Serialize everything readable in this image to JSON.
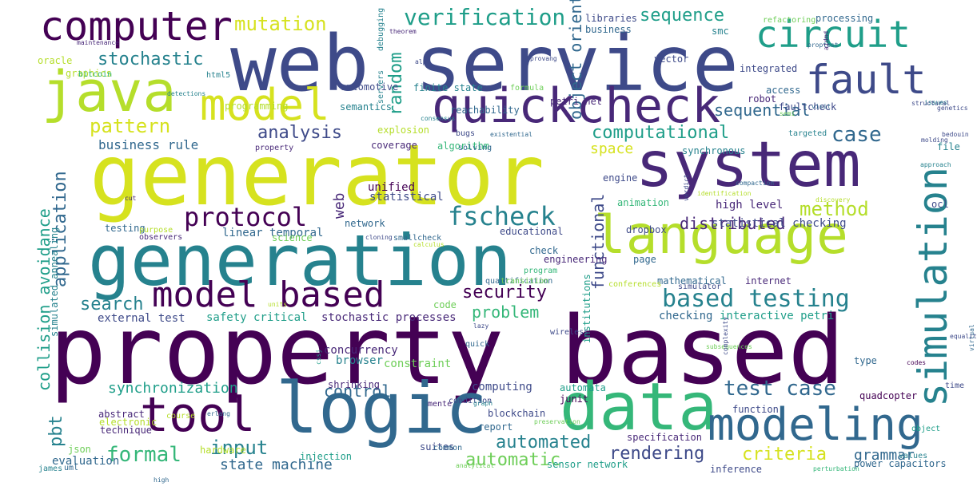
{
  "palette": {
    "c1": "#440154",
    "c2": "#482878",
    "c3": "#3e4a89",
    "c4": "#31688e",
    "c5": "#26828e",
    "c6": "#1f9e89",
    "c7": "#35b779",
    "c8": "#6ece58",
    "c9": "#b5de2b",
    "c10": "#d6e21f"
  },
  "words": [
    {
      "text": "property based",
      "color": "c1"
    },
    {
      "text": "generator",
      "color": "c10"
    },
    {
      "text": "web service",
      "color": "c3"
    },
    {
      "text": "generation",
      "color": "c5"
    },
    {
      "text": "logic",
      "color": "c4"
    },
    {
      "text": "data",
      "color": "c7"
    },
    {
      "text": "system",
      "color": "c2"
    },
    {
      "text": "language",
      "color": "c9"
    },
    {
      "text": "quickcheck",
      "color": "c2"
    },
    {
      "text": "java",
      "color": "c9"
    },
    {
      "text": "computer",
      "color": "c1"
    },
    {
      "text": "circuit",
      "color": "c6"
    },
    {
      "text": "fault",
      "color": "c3"
    },
    {
      "text": "model",
      "color": "c10"
    },
    {
      "text": "tool",
      "color": "c1"
    },
    {
      "text": "modeling",
      "color": "c4"
    },
    {
      "text": "simulation",
      "color": "c5"
    },
    {
      "text": "model based",
      "color": "c1"
    },
    {
      "text": "protocol",
      "color": "c1"
    },
    {
      "text": "fscheck",
      "color": "c5"
    },
    {
      "text": "based testing",
      "color": "c5"
    },
    {
      "text": "test case",
      "color": "c4"
    },
    {
      "text": "verification",
      "color": "c6"
    },
    {
      "text": "mutation",
      "color": "c10"
    },
    {
      "text": "stochastic",
      "color": "c5"
    },
    {
      "text": "pattern",
      "color": "c10"
    },
    {
      "text": "analysis",
      "color": "c3"
    },
    {
      "text": "computational",
      "color": "c6"
    },
    {
      "text": "sequence",
      "color": "c6"
    },
    {
      "text": "sequential",
      "color": "c4"
    },
    {
      "text": "case",
      "color": "c4"
    },
    {
      "text": "method",
      "color": "c9"
    },
    {
      "text": "distributed",
      "color": "c2"
    },
    {
      "text": "security",
      "color": "c1"
    },
    {
      "text": "problem",
      "color": "c7"
    },
    {
      "text": "search",
      "color": "c5"
    },
    {
      "text": "control",
      "color": "c4"
    },
    {
      "text": "synchronization",
      "color": "c6"
    },
    {
      "text": "formal",
      "color": "c7"
    },
    {
      "text": "input",
      "color": "c5"
    },
    {
      "text": "state machine",
      "color": "c4"
    },
    {
      "text": "automated",
      "color": "c5"
    },
    {
      "text": "automatic",
      "color": "c8"
    },
    {
      "text": "rendering",
      "color": "c3"
    },
    {
      "text": "criteria",
      "color": "c10"
    },
    {
      "text": "grammar",
      "color": "c4"
    },
    {
      "text": "business rule",
      "color": "c4"
    },
    {
      "text": "random",
      "color": "c6"
    },
    {
      "text": "object oriented",
      "color": "c4"
    },
    {
      "text": "functional",
      "color": "c3"
    },
    {
      "text": "application",
      "color": "c4"
    },
    {
      "text": "collision avoidance",
      "color": "c6"
    },
    {
      "text": "pbt",
      "color": "c5"
    },
    {
      "text": "space",
      "color": "c10"
    },
    {
      "text": "web",
      "color": "c2"
    },
    {
      "text": "unified",
      "color": "c1"
    },
    {
      "text": "statistical",
      "color": "c3"
    },
    {
      "text": "linear temporal",
      "color": "c4"
    },
    {
      "text": "testing",
      "color": "c4"
    },
    {
      "text": "educational",
      "color": "c3"
    },
    {
      "text": "high level",
      "color": "c2"
    },
    {
      "text": "statistical checking",
      "color": "c3"
    },
    {
      "text": "external test",
      "color": "c3"
    },
    {
      "text": "safety critical",
      "color": "c6"
    },
    {
      "text": "stochastic processes",
      "color": "c2"
    },
    {
      "text": "interactive petri",
      "color": "c6"
    },
    {
      "text": "checking",
      "color": "c4"
    },
    {
      "text": "concurrency",
      "color": "c2"
    },
    {
      "text": "browser",
      "color": "c5"
    },
    {
      "text": "constraint",
      "color": "c8"
    },
    {
      "text": "shrinking",
      "color": "c2"
    },
    {
      "text": "computing",
      "color": "c3"
    },
    {
      "text": "automata",
      "color": "c6"
    },
    {
      "text": "junit",
      "color": "c1"
    },
    {
      "text": "blockchain",
      "color": "c3"
    },
    {
      "text": "report",
      "color": "c4"
    },
    {
      "text": "abstract",
      "color": "c2"
    },
    {
      "text": "electronic",
      "color": "c9"
    },
    {
      "text": "technique",
      "color": "c2"
    },
    {
      "text": "evaluation",
      "color": "c4"
    },
    {
      "text": "hardware",
      "color": "c9"
    },
    {
      "text": "injection",
      "color": "c6"
    },
    {
      "text": "suites",
      "color": "c3"
    },
    {
      "text": "sensor network",
      "color": "c6"
    },
    {
      "text": "specification",
      "color": "c2"
    },
    {
      "text": "power capacitors",
      "color": "c4"
    },
    {
      "text": "inference",
      "color": "c3"
    },
    {
      "text": "function",
      "color": "c3"
    },
    {
      "text": "quadcopter",
      "color": "c1"
    },
    {
      "text": "type",
      "color": "c4"
    },
    {
      "text": "time",
      "color": "c3"
    },
    {
      "text": "mathematical",
      "color": "c4"
    },
    {
      "text": "internet",
      "color": "c2"
    },
    {
      "text": "dropbox",
      "color": "c3"
    },
    {
      "text": "engineering",
      "color": "c2"
    },
    {
      "text": "check",
      "color": "c4"
    },
    {
      "text": "program",
      "color": "c7"
    },
    {
      "text": "page",
      "color": "c4"
    },
    {
      "text": "animation",
      "color": "c7"
    },
    {
      "text": "engine",
      "color": "c3"
    },
    {
      "text": "synchronous",
      "color": "c5"
    },
    {
      "text": "coverage",
      "color": "c2"
    },
    {
      "text": "algorithm",
      "color": "c7"
    },
    {
      "text": "bugs",
      "color": "c3"
    },
    {
      "text": "explosion",
      "color": "c9"
    },
    {
      "text": "reachability",
      "color": "c4"
    },
    {
      "text": "semantics",
      "color": "c5"
    },
    {
      "text": "finite state",
      "color": "c5"
    },
    {
      "text": "automotive",
      "color": "c3"
    },
    {
      "text": "programming",
      "color": "c9"
    },
    {
      "text": "petri net",
      "color": "c2"
    },
    {
      "text": "formula",
      "color": "c8"
    },
    {
      "text": "integrated",
      "color": "c3"
    },
    {
      "text": "robot",
      "color": "c2"
    },
    {
      "text": "access",
      "color": "c4"
    },
    {
      "text": "faultcheck",
      "color": "c3"
    },
    {
      "text": "targeted",
      "color": "c5"
    },
    {
      "text": "file",
      "color": "c5"
    },
    {
      "text": "ocl",
      "color": "c3"
    },
    {
      "text": "libraries",
      "color": "c3"
    },
    {
      "text": "business",
      "color": "c4"
    },
    {
      "text": "refactoring",
      "color": "c8"
    },
    {
      "text": "processing",
      "color": "c4"
    },
    {
      "text": "smc",
      "color": "c5"
    },
    {
      "text": "vector",
      "color": "c3"
    },
    {
      "text": "graphics",
      "color": "c9"
    },
    {
      "text": "oracle",
      "color": "c9"
    },
    {
      "text": "bitcoin",
      "color": "c7"
    },
    {
      "text": "html5",
      "color": "c5"
    },
    {
      "text": "maintenance",
      "color": "c2"
    },
    {
      "text": "simulated annealing",
      "color": "c5"
    },
    {
      "text": "debugging",
      "color": "c5"
    },
    {
      "text": "servers",
      "color": "c5"
    },
    {
      "text": "institutions",
      "color": "c6"
    },
    {
      "text": "science",
      "color": "c8"
    },
    {
      "text": "network",
      "color": "c4"
    },
    {
      "text": "observers",
      "color": "c2"
    },
    {
      "text": "purpose",
      "color": "c9"
    },
    {
      "text": "smallcheck",
      "color": "c4"
    },
    {
      "text": "wireless",
      "color": "c3"
    },
    {
      "text": "code",
      "color": "c8"
    },
    {
      "text": "quantification",
      "color": "c4"
    },
    {
      "text": "transition",
      "color": "c8"
    },
    {
      "text": "simulator",
      "color": "c3"
    },
    {
      "text": "conferences",
      "color": "c9"
    },
    {
      "text": "json",
      "color": "c8"
    },
    {
      "text": "course",
      "color": "c9"
    },
    {
      "text": "uml",
      "color": "c4"
    },
    {
      "text": "james",
      "color": "c5"
    },
    {
      "text": "property",
      "color": "c2"
    },
    {
      "text": "solving",
      "color": "c4"
    },
    {
      "text": "condition",
      "color": "c3"
    },
    {
      "text": "mente",
      "color": "c2"
    },
    {
      "text": "common",
      "color": "c4"
    },
    {
      "text": "quick",
      "color": "c4"
    },
    {
      "text": "values",
      "color": "c5"
    },
    {
      "text": "object",
      "color": "c6"
    },
    {
      "text": "codes",
      "color": "c1"
    },
    {
      "text": "virtual",
      "color": "c4"
    },
    {
      "text": "lazy",
      "color": "c3"
    },
    {
      "text": "alpg",
      "color": "c3"
    },
    {
      "text": "theorem",
      "color": "c2"
    },
    {
      "text": "provang",
      "color": "c3"
    },
    {
      "text": "proptest",
      "color": "c4"
    },
    {
      "text": "aidmd",
      "color": "c2"
    },
    {
      "text": "issues",
      "color": "c5"
    },
    {
      "text": "structural",
      "color": "c3"
    },
    {
      "text": "genetics",
      "color": "c3"
    },
    {
      "text": "molding",
      "color": "c3"
    },
    {
      "text": "identification",
      "color": "c9"
    },
    {
      "text": "compaction",
      "color": "c4"
    },
    {
      "text": "detections",
      "color": "c5"
    },
    {
      "text": "consensus",
      "color": "c5"
    },
    {
      "text": "existential",
      "color": "c4"
    },
    {
      "text": "verdict",
      "color": "c3"
    },
    {
      "text": "cloning",
      "color": "c3"
    },
    {
      "text": "graph",
      "color": "c5"
    },
    {
      "text": "preservation",
      "color": "c8"
    },
    {
      "text": "analytical",
      "color": "c8"
    },
    {
      "text": "high",
      "color": "c4"
    },
    {
      "text": "perturbation",
      "color": "c7"
    },
    {
      "text": "cut",
      "color": "c2"
    },
    {
      "text": "visit",
      "color": "c4"
    },
    {
      "text": "semi",
      "color": "c8"
    },
    {
      "text": "bedouin",
      "color": "c3"
    },
    {
      "text": "approach",
      "color": "c5"
    },
    {
      "text": "subsequences",
      "color": "c8"
    },
    {
      "text": "complexity",
      "color": "c3"
    },
    {
      "text": "equality",
      "color": "c3"
    },
    {
      "text": "discovery",
      "color": "c9"
    },
    {
      "text": "units",
      "color": "c9"
    },
    {
      "text": "cssj",
      "color": "c6"
    },
    {
      "text": "erlang",
      "color": "c4"
    },
    {
      "text": "calculus",
      "color": "c9"
    }
  ]
}
